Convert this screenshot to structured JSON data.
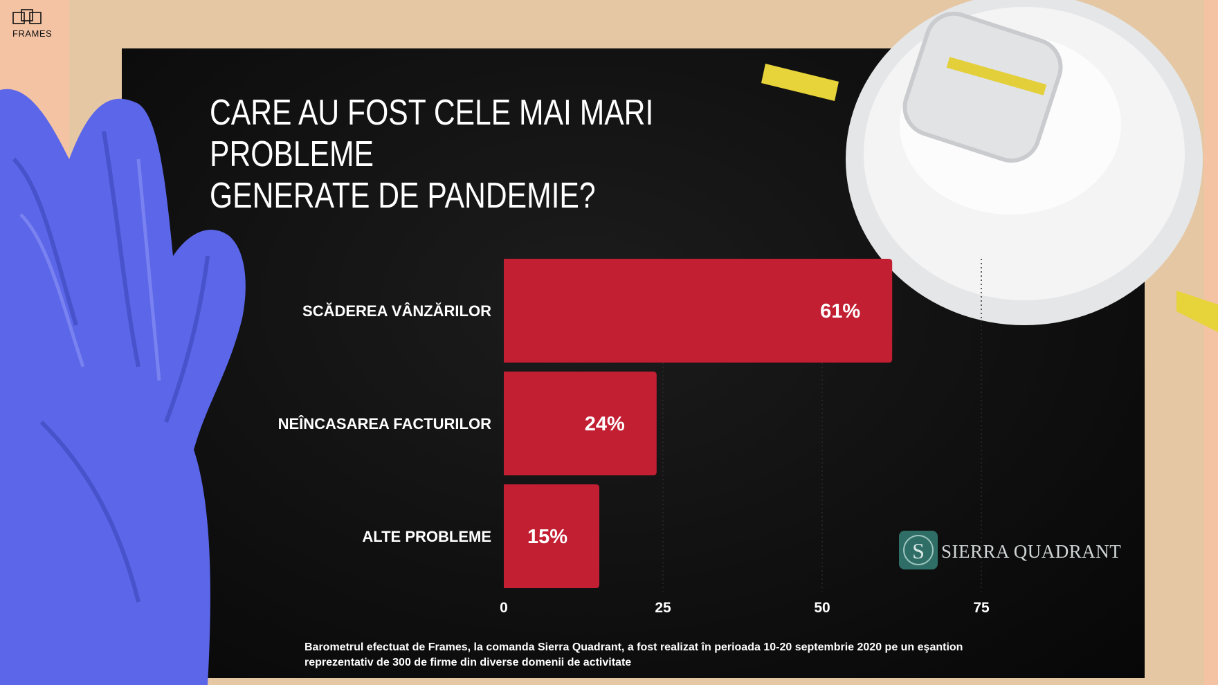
{
  "brand": {
    "name": "FRAMES"
  },
  "title_lines": [
    "CARE AU FOST CELE MAI MARI PROBLEME",
    "GENERATE DE PANDEMIE?"
  ],
  "chart_data": {
    "type": "bar",
    "orientation": "horizontal",
    "categories": [
      "SCĂDEREA VÂNZĂRILOR",
      "NEÎNCASAREA FACTURILOR",
      "ALTE PROBLEME"
    ],
    "values": [
      61,
      24,
      15
    ],
    "value_labels": [
      "61%",
      "24%",
      "15%"
    ],
    "xlim": [
      0,
      75
    ],
    "xticks": [
      0,
      25,
      50,
      75
    ],
    "xtick_labels": [
      "0",
      "25",
      "50",
      "75"
    ],
    "bar_color": "#c21f33",
    "grid": true
  },
  "logo": {
    "text": "SIERRA QUADRANT",
    "letter": "S",
    "color": "#2f6e67"
  },
  "footnote": "Barometrul efectuat de Frames, la comanda Sierra Quadrant, a fost realizat în perioada 10-20 septembrie 2020 pe un eşantion reprezentativ de 300 de firme din diverse domenii de activitate"
}
